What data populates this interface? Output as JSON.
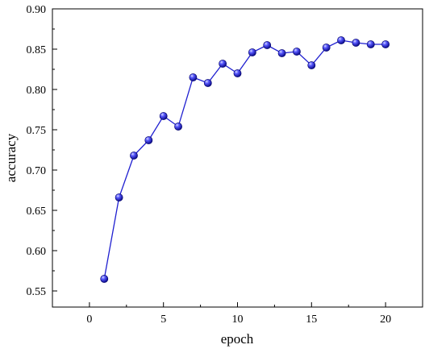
{
  "chart_data": {
    "type": "line",
    "title": "",
    "xlabel": "epoch",
    "ylabel": "accuracy",
    "xlim": [
      -2.5,
      22.5
    ],
    "ylim": [
      0.53,
      0.9
    ],
    "xticks": [
      0,
      5,
      10,
      15,
      20
    ],
    "xtick_labels": [
      "0",
      "5",
      "10",
      "15",
      "20"
    ],
    "yticks": [
      0.55,
      0.6,
      0.65,
      0.7,
      0.75,
      0.8,
      0.85,
      0.9
    ],
    "ytick_labels": [
      "0.55",
      "0.60",
      "0.65",
      "0.70",
      "0.75",
      "0.80",
      "0.85",
      "0.90"
    ],
    "grid": false,
    "legend": "none",
    "series": [
      {
        "color": "#1f1fd0",
        "marker": "sphere",
        "x": [
          1,
          2,
          3,
          4,
          5,
          6,
          7,
          8,
          9,
          10,
          11,
          12,
          13,
          14,
          15,
          16,
          17,
          18,
          19,
          20
        ],
        "y": [
          0.565,
          0.666,
          0.718,
          0.737,
          0.767,
          0.754,
          0.815,
          0.808,
          0.832,
          0.82,
          0.846,
          0.855,
          0.845,
          0.847,
          0.83,
          0.852,
          0.861,
          0.858,
          0.856,
          0.856
        ]
      }
    ]
  }
}
